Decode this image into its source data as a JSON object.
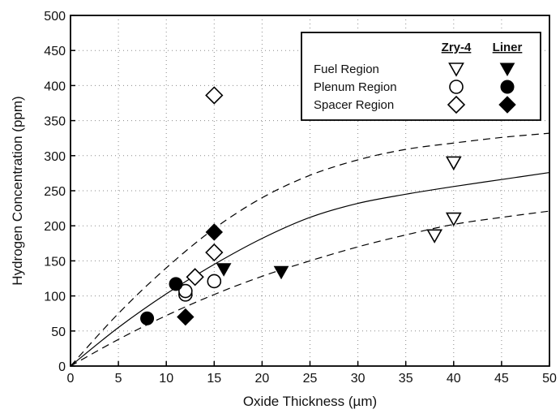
{
  "chart_data": {
    "type": "scatter",
    "xlabel": "Oxide Thickness (µm)",
    "ylabel": "Hydrogen Concentration (ppm)",
    "xlim": [
      0,
      50
    ],
    "ylim": [
      0,
      500
    ],
    "xticks": [
      0,
      5,
      10,
      15,
      20,
      25,
      30,
      35,
      40,
      45,
      50
    ],
    "yticks": [
      0,
      50,
      100,
      150,
      200,
      250,
      300,
      350,
      400,
      450,
      500
    ],
    "grid": true,
    "legend_position": "top-right",
    "legend": {
      "column_headers": [
        "Zry-4",
        "Liner"
      ],
      "rows": [
        "Fuel Region",
        "Plenum Region",
        "Spacer Region"
      ]
    },
    "series": [
      {
        "name": "Fuel Region Zry-4",
        "marker": "triangle-down-open",
        "points": [
          [
            38,
            186
          ],
          [
            40,
            210
          ],
          [
            40,
            290
          ]
        ]
      },
      {
        "name": "Fuel Region Liner",
        "marker": "triangle-down-filled",
        "points": [
          [
            16,
            138
          ],
          [
            22,
            134
          ]
        ]
      },
      {
        "name": "Plenum Region Zry-4",
        "marker": "circle-open",
        "points": [
          [
            12,
            102
          ],
          [
            12,
            107
          ],
          [
            15,
            121
          ]
        ]
      },
      {
        "name": "Plenum Region Liner",
        "marker": "circle-filled",
        "points": [
          [
            8,
            68
          ],
          [
            11,
            117
          ]
        ]
      },
      {
        "name": "Spacer Region Zry-4",
        "marker": "diamond-open",
        "points": [
          [
            13,
            127
          ],
          [
            15,
            162
          ],
          [
            15,
            386
          ]
        ]
      },
      {
        "name": "Spacer Region Liner",
        "marker": "diamond-filled",
        "points": [
          [
            12,
            70
          ],
          [
            15,
            191
          ]
        ]
      }
    ],
    "curves": [
      {
        "style": "solid",
        "points": [
          [
            0,
            0
          ],
          [
            5,
            55
          ],
          [
            10,
            103
          ],
          [
            15,
            145
          ],
          [
            20,
            182
          ],
          [
            25,
            212
          ],
          [
            30,
            232
          ],
          [
            35,
            245
          ],
          [
            40,
            256
          ],
          [
            45,
            266
          ],
          [
            50,
            276
          ]
        ]
      },
      {
        "style": "dashed",
        "points": [
          [
            0,
            0
          ],
          [
            5,
            75
          ],
          [
            10,
            140
          ],
          [
            15,
            196
          ],
          [
            20,
            240
          ],
          [
            25,
            272
          ],
          [
            30,
            294
          ],
          [
            35,
            309
          ],
          [
            40,
            318
          ],
          [
            45,
            326
          ],
          [
            50,
            332
          ]
        ]
      },
      {
        "style": "dashed",
        "points": [
          [
            0,
            0
          ],
          [
            5,
            38
          ],
          [
            10,
            72
          ],
          [
            15,
            102
          ],
          [
            20,
            128
          ],
          [
            25,
            150
          ],
          [
            30,
            170
          ],
          [
            35,
            187
          ],
          [
            40,
            202
          ],
          [
            45,
            212
          ],
          [
            50,
            221
          ]
        ]
      }
    ]
  }
}
